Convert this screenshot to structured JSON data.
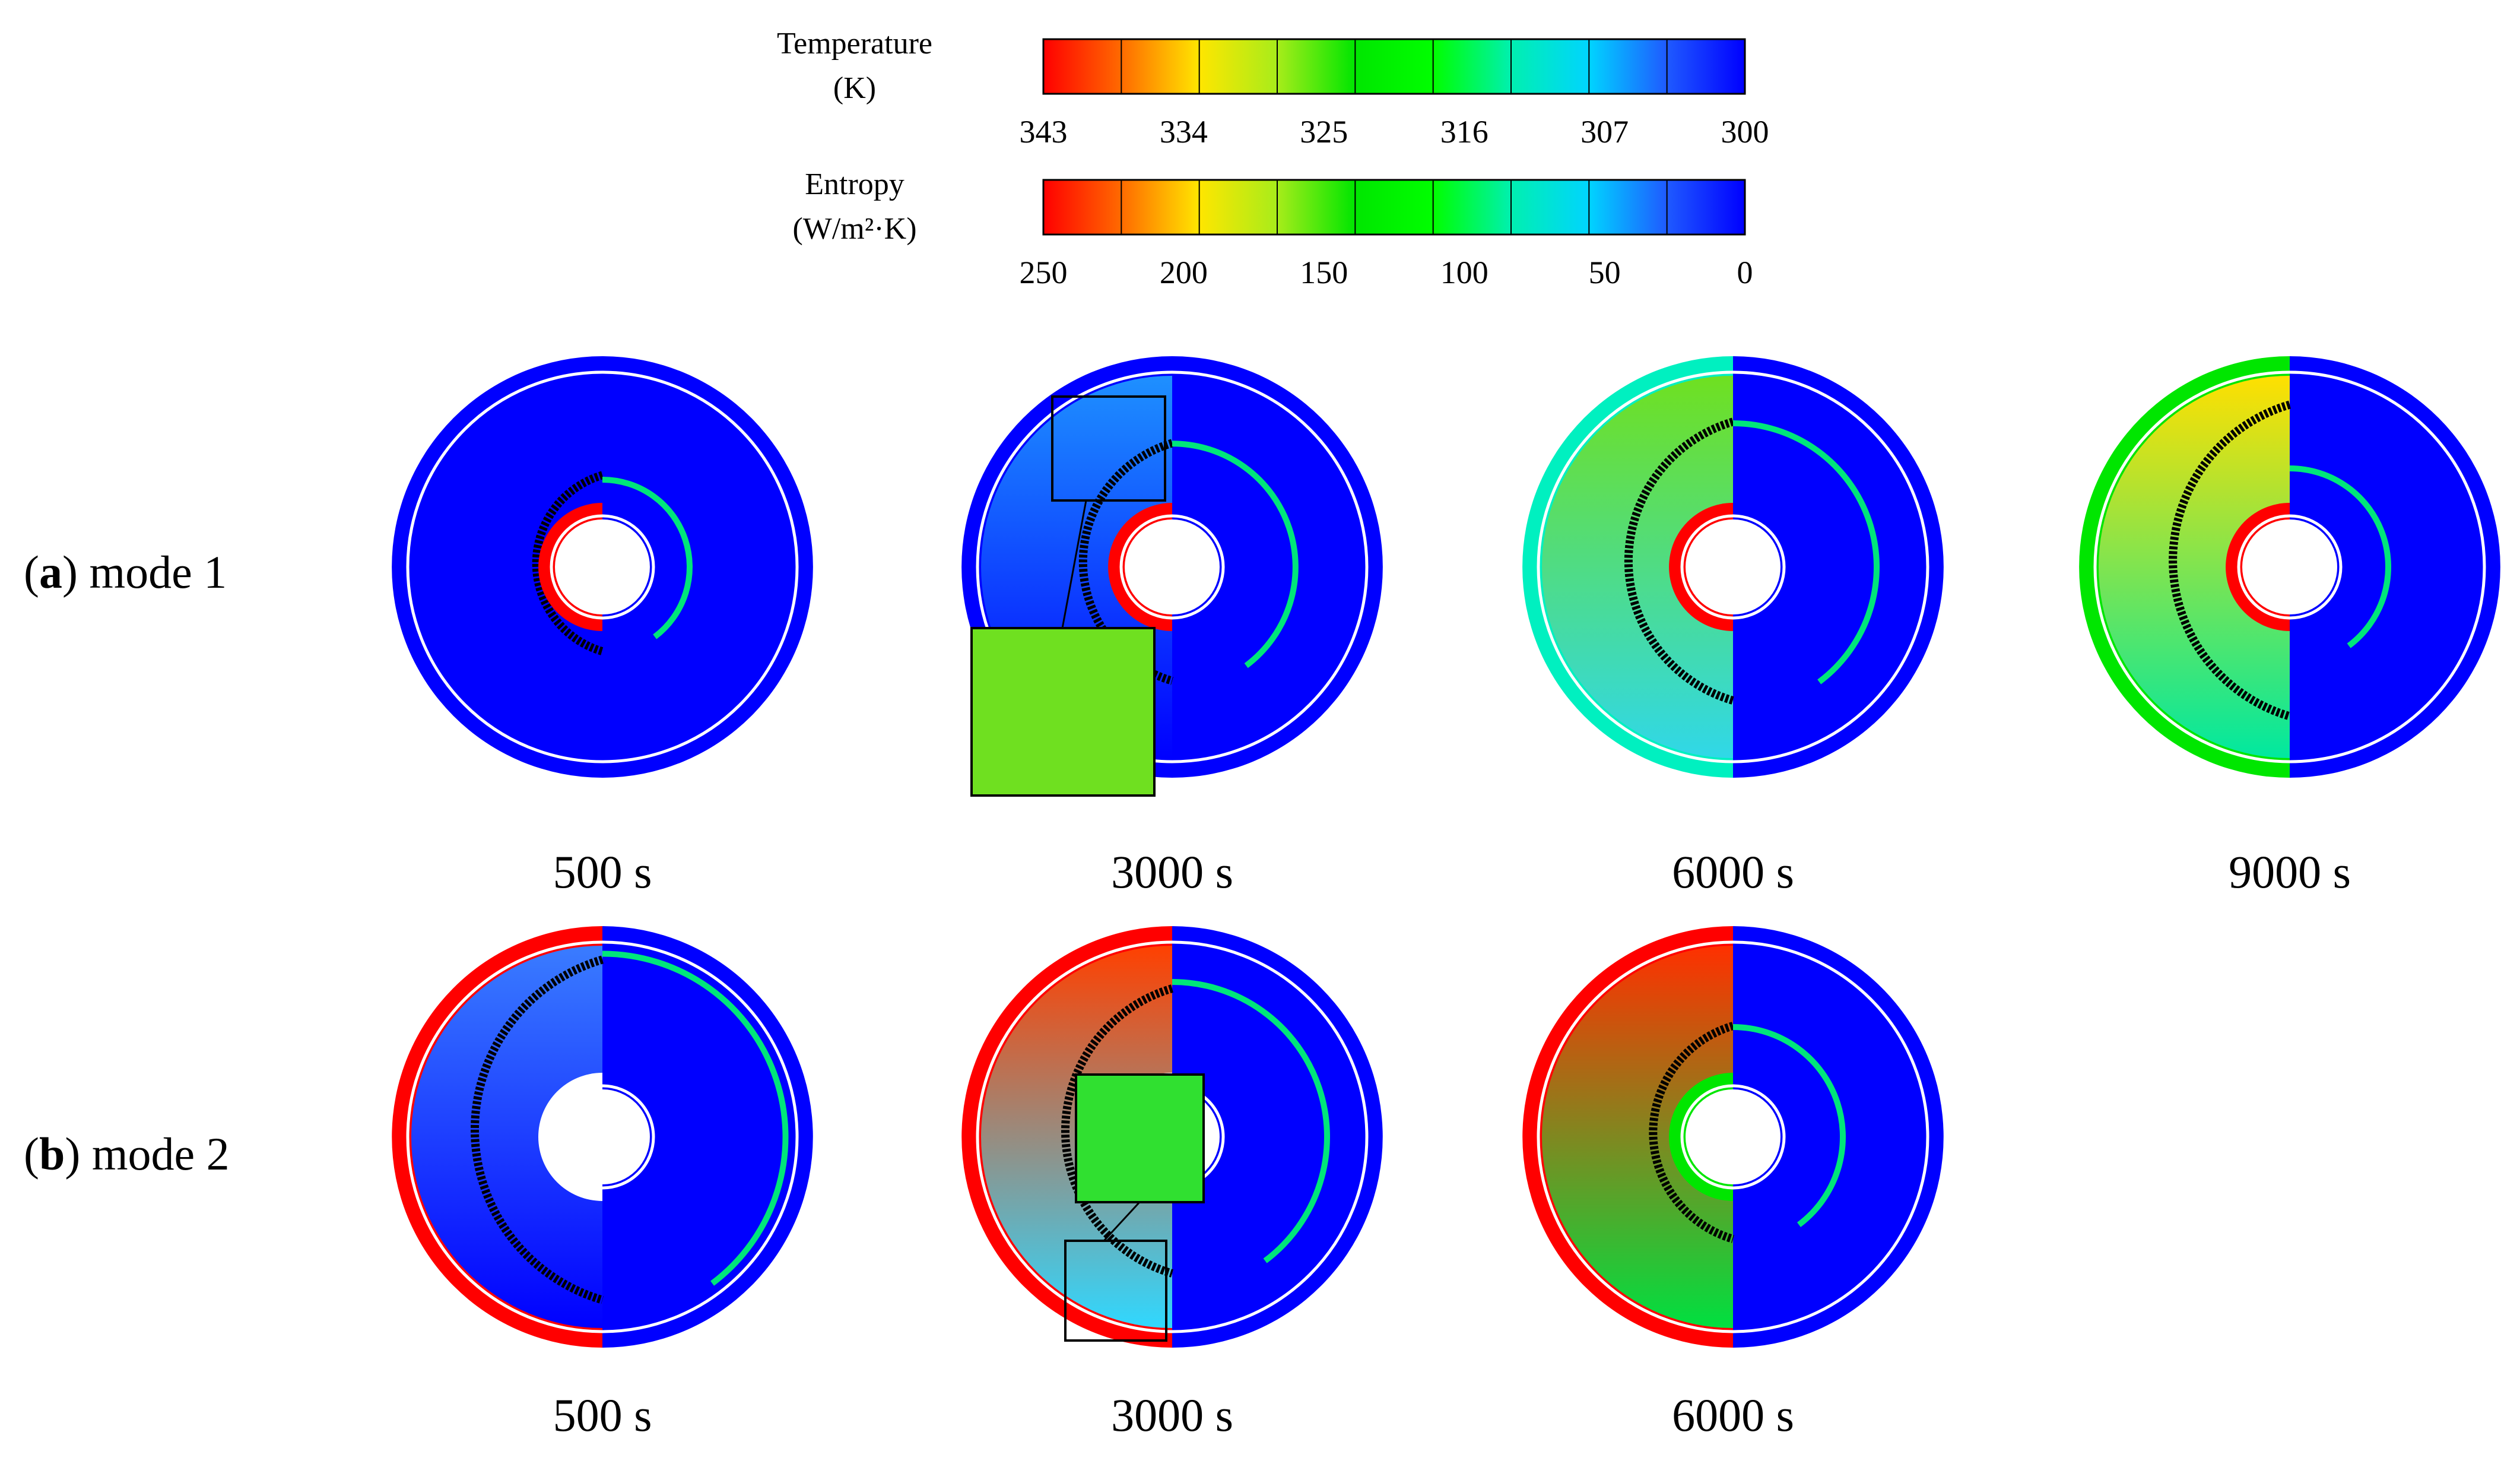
{
  "colorbars": [
    {
      "title_line1": "Temperature",
      "title_line2": "(K)",
      "ticks": [
        "343",
        "334",
        "325",
        "316",
        "307",
        "300"
      ],
      "stops": [
        "#ff0000",
        "#ff6a00",
        "#ffe600",
        "#a8ec1a",
        "#00e600",
        "#00ff00",
        "#00f0b0",
        "#00d4ff",
        "#1f5aff",
        "#0000ff"
      ]
    },
    {
      "title_line1": "Entropy",
      "title_line2": "(W/m²·K)",
      "ticks": [
        "250",
        "200",
        "150",
        "100",
        "50",
        "0"
      ],
      "stops": [
        "#ff0000",
        "#ff6a00",
        "#ffe600",
        "#a8ec1a",
        "#00e600",
        "#00ff00",
        "#00f0b0",
        "#00d4ff",
        "#1f5aff",
        "#0000ff"
      ]
    }
  ],
  "rows": [
    {
      "label_bold": "a",
      "label_rest": ") mode 1",
      "panels": [
        {
          "time": "500 s",
          "left": {
            "outer": "#0000ff",
            "field": [
              "#0000ff",
              "#0000ff"
            ],
            "melt": 0.12
          },
          "right_line": 0.1,
          "inner_left": "#ff0000"
        },
        {
          "time": "3000 s",
          "left": {
            "outer": "#0000ff",
            "field": [
              "#1e90ff",
              "#0000ff"
            ],
            "melt": 0.42
          },
          "right_line": 0.42,
          "inner_left": "#ff0000"
        },
        {
          "time": "6000 s",
          "left": {
            "outer": "#00f0c0",
            "field": [
              "#6fe020",
              "#30d8e8"
            ],
            "melt": 0.62
          },
          "right_line": 0.6,
          "inner_left": "#ff0000"
        },
        {
          "time": "9000 s",
          "left": {
            "outer": "#00e600",
            "field": [
              "#ffe000",
              "#00e8a0"
            ],
            "melt": 0.78
          },
          "right_line": 0.2,
          "inner_left": "#ff0000"
        }
      ]
    },
    {
      "label_bold": "b",
      "label_rest": ") mode 2",
      "panels": [
        {
          "time": "500 s",
          "left": {
            "outer": "#ff0000",
            "field": [
              "#3a7cff",
              "#0000ff"
            ],
            "melt": 0.92
          },
          "right_line": 0.95,
          "inner_left": "#ffffff"
        },
        {
          "time": "3000 s",
          "left": {
            "outer": "#ff0000",
            "field": [
              "#ff4000",
              "#30d8ff"
            ],
            "melt": 0.65
          },
          "right_line": 0.7,
          "inner_left": "#ffffff"
        },
        {
          "time": "6000 s",
          "left": {
            "outer": "#ff0000",
            "field": [
              "#ff3000",
              "#00e040"
            ],
            "melt": 0.3
          },
          "right_line": 0.3,
          "inner_left": "#00e600"
        }
      ]
    }
  ]
}
